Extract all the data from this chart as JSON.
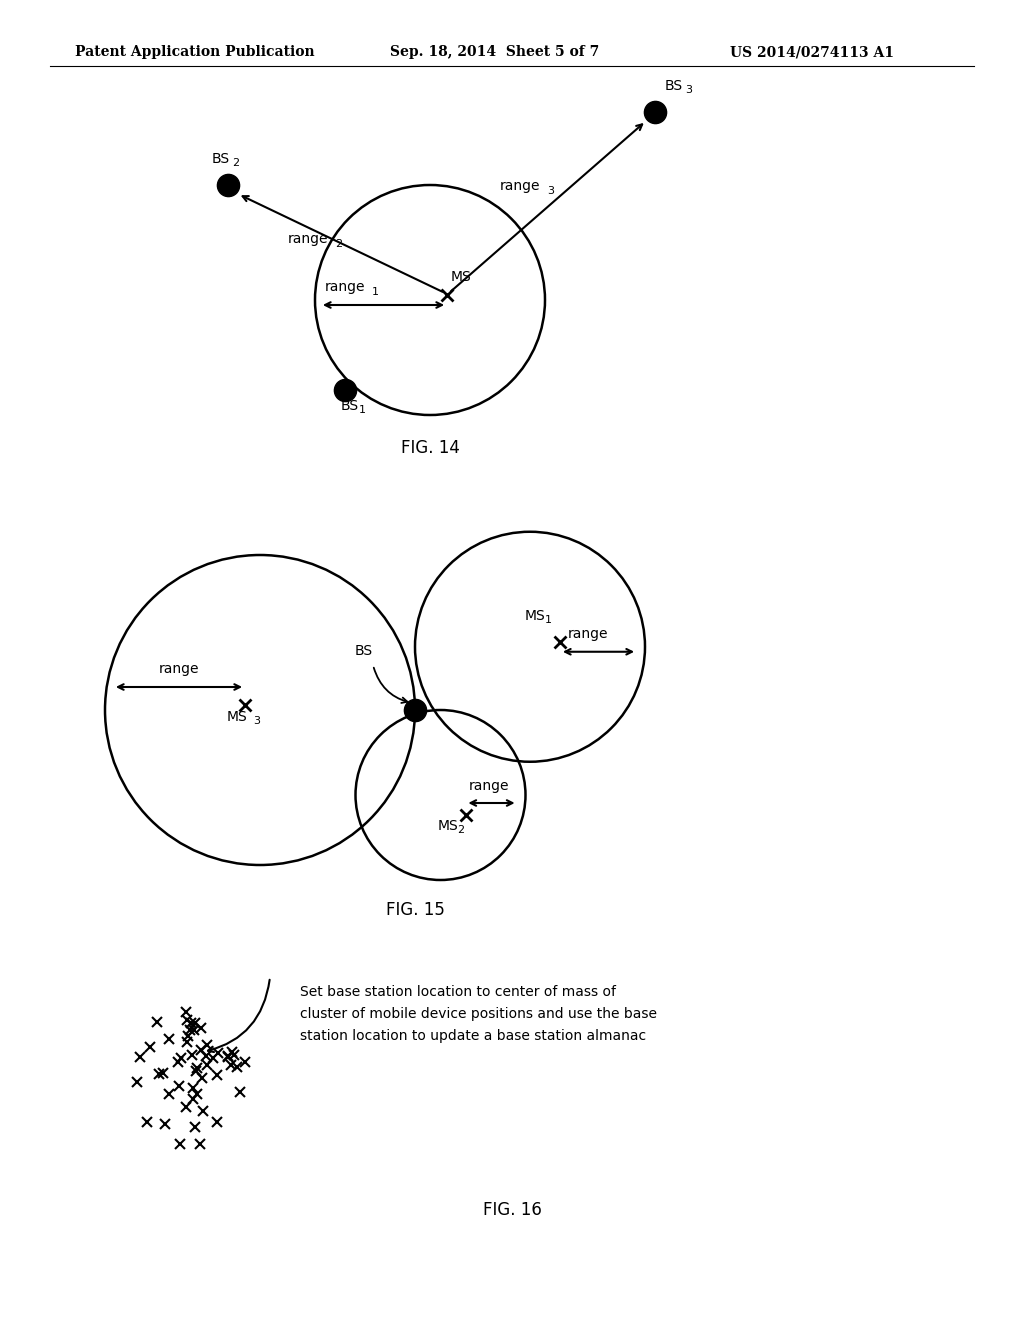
{
  "header_left": "Patent Application Publication",
  "header_mid": "Sep. 18, 2014  Sheet 5 of 7",
  "header_right": "US 2014/0274113 A1",
  "fig14_label": "FIG. 14",
  "fig15_label": "FIG. 15",
  "fig16_label": "FIG. 16",
  "background_color": "#ffffff",
  "fig16_text_line1": "Set base station location to center of mass of",
  "fig16_text_line2": "cluster of mobile device positions and use the base",
  "fig16_text_line3": "station location to update a base station almanac"
}
